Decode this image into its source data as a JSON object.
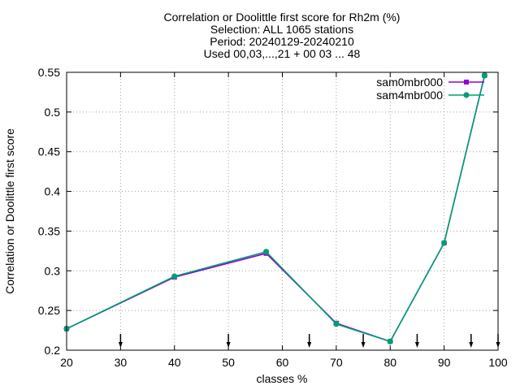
{
  "chart_data": {
    "type": "line",
    "title_lines": [
      "Correlation or Doolittle first score  for Rh2m (%)",
      "Selection: ALL   1065 stations",
      "Period: 20240129-20240210",
      "Used 00,03,...,21 + 00 03 ... 48"
    ],
    "xlabel": "classes %",
    "ylabel": "Correlation or Doolittle first score",
    "xlim": [
      20,
      100
    ],
    "ylim": [
      0.2,
      0.55
    ],
    "xticks": [
      "20",
      "30",
      "40",
      "50",
      "60",
      "70",
      "80",
      "90",
      "100"
    ],
    "yticks": [
      "0.2",
      "0.25",
      "0.3",
      "0.35",
      "0.4",
      "0.45",
      "0.5",
      "0.55"
    ],
    "grid": true,
    "legend_position": "top-right",
    "series": [
      {
        "name": "sam0mbr000",
        "color": "#9400d3",
        "marker": "square",
        "x": [
          20,
          40,
          57,
          70,
          80,
          90,
          97.5
        ],
        "y": [
          0.227,
          0.292,
          0.322,
          0.234,
          0.211,
          0.335,
          0.546
        ]
      },
      {
        "name": "sam4mbr000",
        "color": "#009e73",
        "marker": "circle",
        "x": [
          20,
          40,
          57,
          70,
          80,
          90,
          97.5
        ],
        "y": [
          0.227,
          0.293,
          0.324,
          0.233,
          0.211,
          0.335,
          0.546
        ]
      }
    ],
    "arrow_markers_x": [
      30,
      50,
      65,
      75,
      85,
      95,
      100
    ]
  }
}
